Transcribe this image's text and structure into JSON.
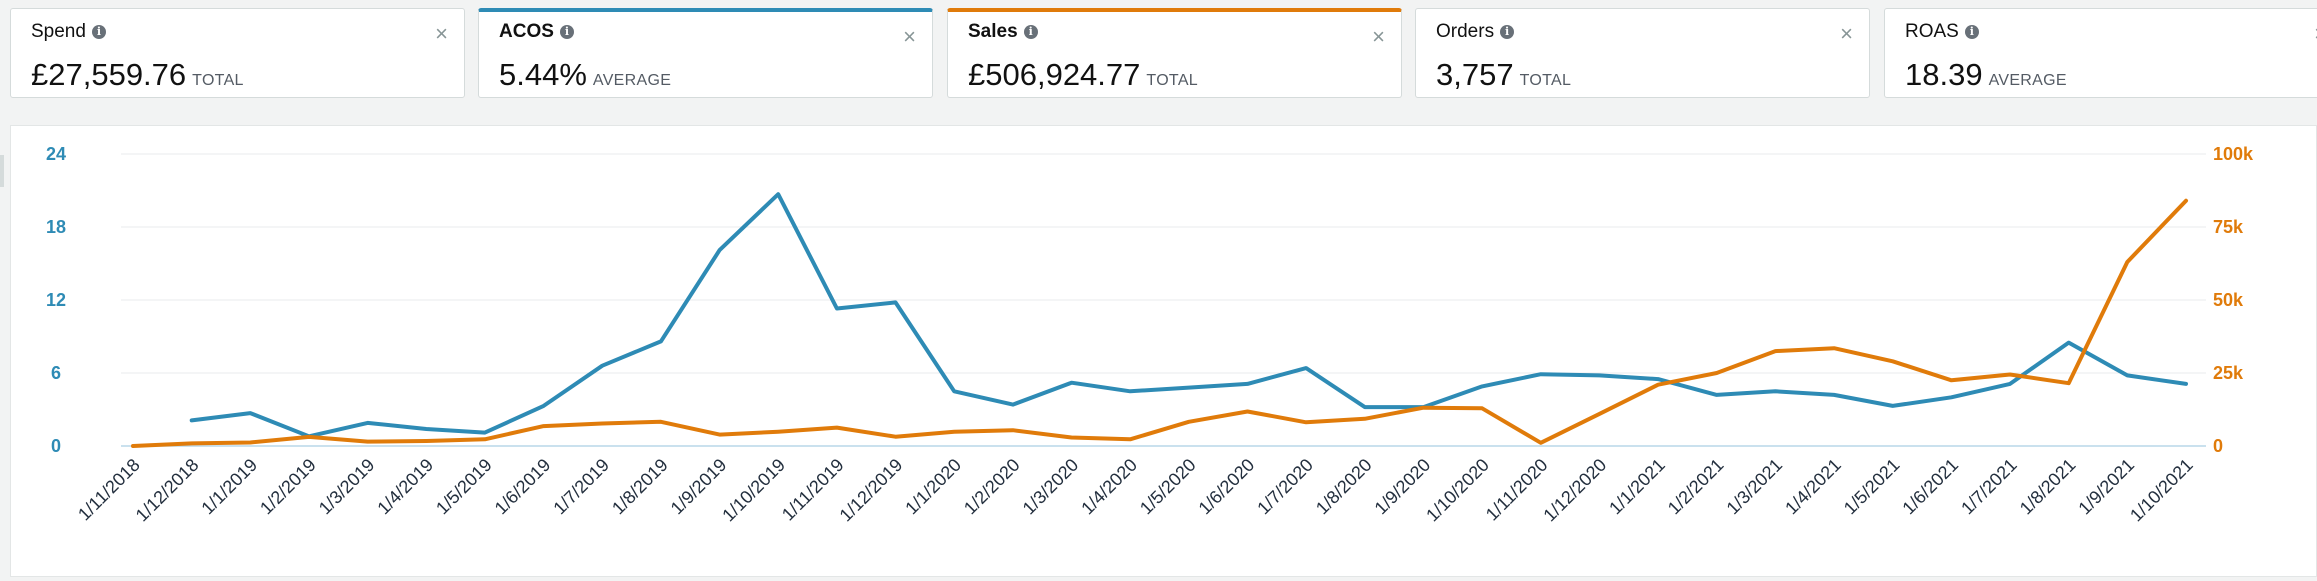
{
  "metrics": [
    {
      "label": "Spend",
      "value": "£27,559.76",
      "sub": "TOTAL",
      "selected": false
    },
    {
      "label": "ACOS",
      "value": "5.44%",
      "sub": "AVERAGE",
      "selected": true,
      "color": "#2e8bb5"
    },
    {
      "label": "Sales",
      "value": "£506,924.77",
      "sub": "TOTAL",
      "selected": true,
      "color": "#e07b0a"
    },
    {
      "label": "Orders",
      "value": "3,757",
      "sub": "TOTAL",
      "selected": false
    },
    {
      "label": "ROAS",
      "value": "18.39",
      "sub": "AVERAGE",
      "selected": false
    }
  ],
  "icons": {
    "info": "info-icon",
    "close": "close-icon"
  },
  "close_glyph": "×",
  "info_glyph": "i",
  "chart_data": {
    "type": "line",
    "x": [
      "1/11/2018",
      "1/12/2018",
      "1/1/2019",
      "1/2/2019",
      "1/3/2019",
      "1/4/2019",
      "1/5/2019",
      "1/6/2019",
      "1/7/2019",
      "1/8/2019",
      "1/9/2019",
      "1/10/2019",
      "1/11/2019",
      "1/12/2019",
      "1/1/2020",
      "1/2/2020",
      "1/3/2020",
      "1/4/2020",
      "1/5/2020",
      "1/6/2020",
      "1/7/2020",
      "1/8/2020",
      "1/9/2020",
      "1/10/2020",
      "1/11/2020",
      "1/12/2020",
      "1/1/2021",
      "1/2/2021",
      "1/3/2021",
      "1/4/2021",
      "1/5/2021",
      "1/6/2021",
      "1/7/2021",
      "1/8/2021",
      "1/9/2021",
      "1/10/2021"
    ],
    "series": [
      {
        "name": "ACOS",
        "axis": "left",
        "color": "#2e8bb5",
        "values": [
          null,
          2.1,
          2.7,
          0.8,
          1.9,
          1.4,
          1.1,
          3.3,
          6.6,
          8.6,
          16.1,
          20.7,
          11.3,
          11.8,
          4.5,
          3.4,
          5.2,
          4.5,
          4.8,
          5.1,
          6.4,
          3.2,
          3.2,
          4.9,
          5.9,
          5.8,
          5.5,
          4.2,
          4.5,
          4.2,
          3.3,
          4.0,
          5.1,
          8.5,
          5.8,
          5.1
        ]
      },
      {
        "name": "Sales",
        "axis": "right",
        "color": "#e07b0a",
        "values": [
          0,
          900,
          1200,
          3100,
          1500,
          1700,
          2300,
          6800,
          7700,
          8300,
          3900,
          4900,
          6300,
          3200,
          4900,
          5400,
          2900,
          2300,
          8300,
          11800,
          8100,
          9300,
          13100,
          12900,
          1100,
          11000,
          21000,
          25000,
          32500,
          33500,
          29000,
          22500,
          24500,
          21500,
          63000,
          84000
        ]
      }
    ],
    "yleft": {
      "ticks": [
        0,
        6,
        12,
        18,
        24
      ],
      "range": [
        0,
        24
      ],
      "color": "#2e8bb5"
    },
    "yright": {
      "ticks": [
        0,
        25000,
        50000,
        75000,
        100000
      ],
      "tick_labels": [
        "0",
        "25k",
        "50k",
        "75k",
        "100k"
      ],
      "range": [
        0,
        100000
      ],
      "color": "#e07b0a"
    },
    "grid": true,
    "legend": "none"
  }
}
